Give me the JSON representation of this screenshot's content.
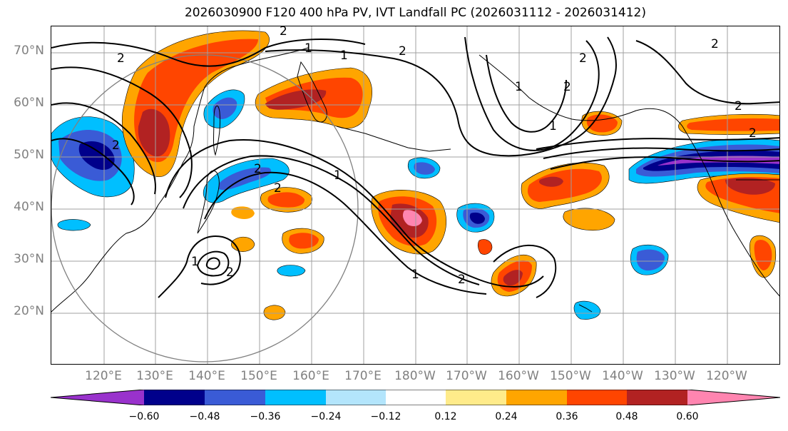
{
  "title": "2026030900 F120 400 hPa PV, IVT Landfall PC (2026031112 - 2026031412)",
  "lat_labels": [
    "70°N",
    "60°N",
    "50°N",
    "40°N",
    "30°N",
    "20°N"
  ],
  "lon_labels": [
    "120°E",
    "130°E",
    "140°E",
    "150°E",
    "160°E",
    "170°E",
    "180°W",
    "170°W",
    "160°W",
    "150°W",
    "140°W",
    "130°W",
    "120°W"
  ],
  "contour_labels": [
    "2",
    "1",
    "2",
    "2",
    "1",
    "2",
    "2",
    "1",
    "2",
    "2",
    "1",
    "2",
    "1",
    "2",
    "1",
    "2",
    "2",
    "1",
    "2",
    "2"
  ],
  "colorbar": {
    "ticks": [
      "−0.60",
      "−0.48",
      "−0.36",
      "−0.24",
      "−0.12",
      "0.12",
      "0.24",
      "0.36",
      "0.48",
      "0.60"
    ],
    "colors": [
      "#9932cc",
      "#00008b",
      "#3a5bd6",
      "#00bfff",
      "#b3e5fc",
      "#ffffff",
      "#ffeb8a",
      "#ffa500",
      "#ff4500",
      "#b22222",
      "#ff85b0"
    ]
  },
  "colors": {
    "axis_label": "#808080",
    "contour": "#000000",
    "grid": "#a0a0a0"
  }
}
